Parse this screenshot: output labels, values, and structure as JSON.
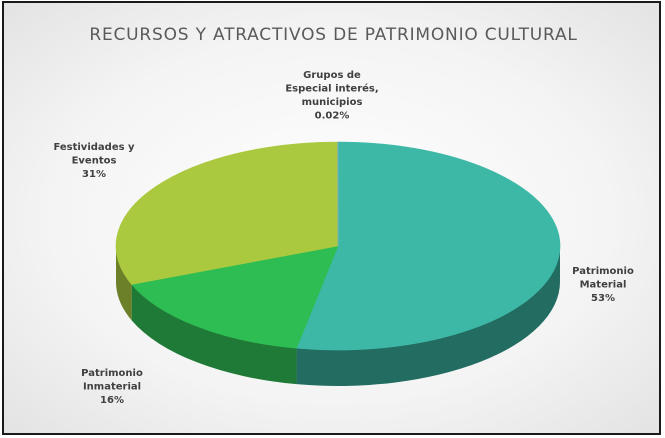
{
  "chart_data": {
    "type": "pie",
    "title": "RECURSOS Y ATRACTIVOS DE PATRIMONIO CULTURAL",
    "slices": [
      {
        "label_lines": [
          "Patrimonio",
          "Material"
        ],
        "percent_text": "53%",
        "value": 53,
        "color": "#3db8a6",
        "side_color": "#226c61"
      },
      {
        "label_lines": [
          "Patrimonio",
          "Inmaterial"
        ],
        "percent_text": "16%",
        "value": 16,
        "color": "#2ebd52",
        "side_color": "#1f7a37"
      },
      {
        "label_lines": [
          "Festividades y",
          "Eventos"
        ],
        "percent_text": "31%",
        "value": 31,
        "color": "#aac93f",
        "side_color": "#6c7f29"
      },
      {
        "label_lines": [
          "Grupos de",
          "Especial interés,",
          "municipios"
        ],
        "percent_text": "0.02%",
        "value": 0.02,
        "color": "#7fa8d8",
        "side_color": "#4f6f96"
      }
    ],
    "legend": "none",
    "three_d": true
  }
}
